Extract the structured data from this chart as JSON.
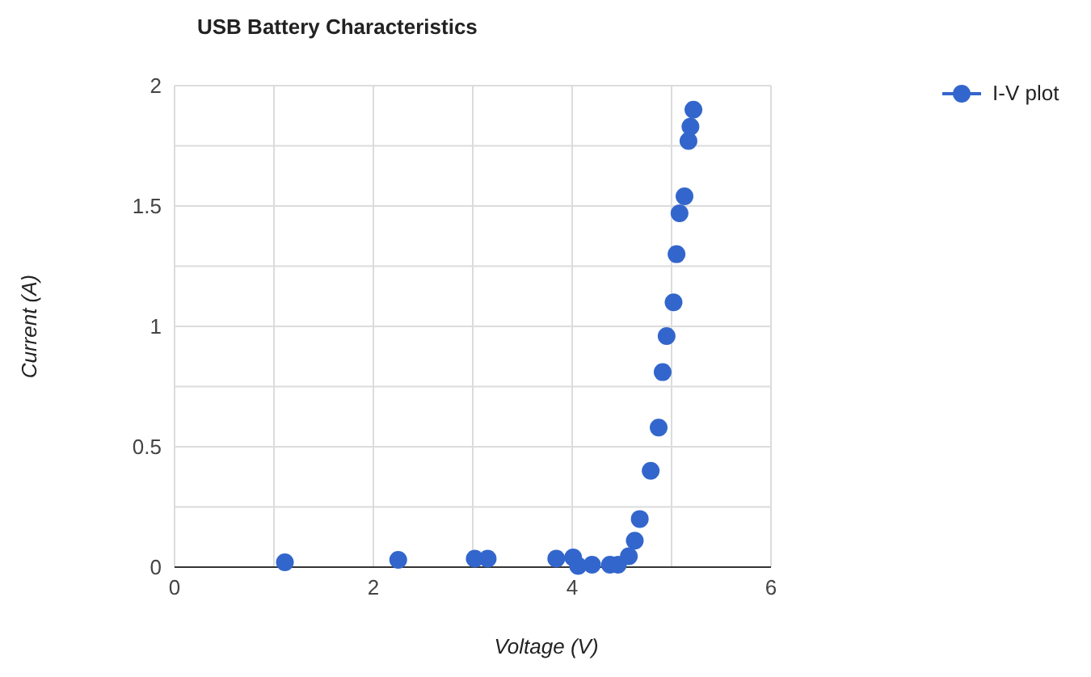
{
  "chart_data": {
    "type": "scatter",
    "title": "USB Battery Characteristics",
    "xlabel": "Voltage (V)",
    "ylabel": "Current (A)",
    "series": [
      {
        "name": "I-V plot",
        "color": "#3366cc",
        "x": [
          1.11,
          2.25,
          3.02,
          3.15,
          3.84,
          4.01,
          4.06,
          4.2,
          4.38,
          4.46,
          4.57,
          4.63,
          4.68,
          4.79,
          4.87,
          4.91,
          4.95,
          5.02,
          5.05,
          5.08,
          5.13,
          5.17,
          5.19,
          5.22
        ],
        "values": [
          0.02,
          0.03,
          0.035,
          0.035,
          0.035,
          0.04,
          0.005,
          0.01,
          0.01,
          0.01,
          0.045,
          0.11,
          0.2,
          0.4,
          0.58,
          0.81,
          0.96,
          1.1,
          1.3,
          1.47,
          1.54,
          1.77,
          1.83,
          1.9
        ]
      }
    ],
    "xlim": [
      0,
      6
    ],
    "xticks": [
      0,
      {
        "value": 1,
        "label": null
      },
      2,
      {
        "value": 3,
        "label": null
      },
      4,
      {
        "value": 5,
        "label": null
      },
      6
    ],
    "ylim": [
      0,
      2
    ],
    "yticks": [
      0,
      {
        "value": 0.25,
        "label": null
      },
      0.5,
      {
        "value": 0.75,
        "label": null
      },
      1,
      {
        "value": 1.25,
        "label": null
      },
      1.5,
      {
        "value": 1.75,
        "label": null
      },
      2
    ],
    "grid": true,
    "legend": "top right",
    "marker": "circle"
  }
}
